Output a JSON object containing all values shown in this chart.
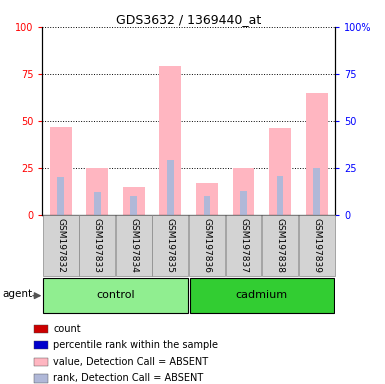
{
  "title": "GDS3632 / 1369440_at",
  "samples": [
    "GSM197832",
    "GSM197833",
    "GSM197834",
    "GSM197835",
    "GSM197836",
    "GSM197837",
    "GSM197838",
    "GSM197839"
  ],
  "groups": [
    "control",
    "control",
    "control",
    "control",
    "cadmium",
    "cadmium",
    "cadmium",
    "cadmium"
  ],
  "value_absent": [
    47,
    25,
    15,
    79,
    17,
    25,
    46,
    65
  ],
  "rank_absent": [
    20,
    12,
    10,
    29,
    10,
    13,
    21,
    25
  ],
  "ylim": [
    0,
    100
  ],
  "yticks": [
    0,
    25,
    50,
    75,
    100
  ],
  "ytick_labels_left": [
    "0",
    "25",
    "50",
    "75",
    "100"
  ],
  "ytick_labels_right": [
    "0",
    "25",
    "50",
    "75",
    "100%"
  ],
  "color_value_absent": "#FFB6C1",
  "color_rank_absent": "#B0B8D8",
  "color_count": "#CC0000",
  "color_rank": "#0000CC",
  "bg_label_control": "#90EE90",
  "bg_label_cadmium": "#32CD32",
  "group_control_label": "control",
  "group_cadmium_label": "cadmium",
  "agent_label": "agent",
  "legend_items": [
    "count",
    "percentile rank within the sample",
    "value, Detection Call = ABSENT",
    "rank, Detection Call = ABSENT"
  ],
  "legend_colors": [
    "#CC0000",
    "#0000CC",
    "#FFB6C1",
    "#B0B8D8"
  ]
}
